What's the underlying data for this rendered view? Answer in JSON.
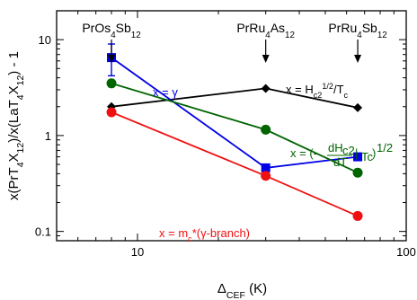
{
  "chart_data": {
    "type": "scatter",
    "xscale": "log",
    "yscale": "log",
    "xlim": [
      5,
      100
    ],
    "ylim": [
      0.08,
      20
    ],
    "grid": false,
    "legend": "none",
    "xlabel": {
      "main": "Δ",
      "sub": "CEF",
      "tail": " (K)"
    },
    "ylabel": {
      "parts": [
        {
          "t": "x(PrT"
        },
        {
          "t": "4",
          "sub": true
        },
        {
          "t": "X"
        },
        {
          "t": "12",
          "sub": true
        },
        {
          "t": ")/x(LaT"
        },
        {
          "t": "4",
          "sub": true
        },
        {
          "t": "X"
        },
        {
          "t": "12",
          "sub": true
        },
        {
          "t": ") - 1"
        }
      ]
    },
    "xticks": [
      {
        "v": 10,
        "label": "10"
      },
      {
        "v": 100,
        "label": "100"
      }
    ],
    "yticks": [
      {
        "v": 0.1,
        "label": "0.1"
      },
      {
        "v": 1,
        "label": "1"
      },
      {
        "v": 10,
        "label": "10"
      }
    ],
    "compounds": [
      {
        "x": 8,
        "parts": [
          {
            "t": "PrOs"
          },
          {
            "t": "4",
            "sub": true
          },
          {
            "t": "Sb"
          },
          {
            "t": "12",
            "sub": true
          }
        ]
      },
      {
        "x": 30,
        "parts": [
          {
            "t": "PrRu"
          },
          {
            "t": "4",
            "sub": true
          },
          {
            "t": "As"
          },
          {
            "t": "12",
            "sub": true
          }
        ]
      },
      {
        "x": 66,
        "parts": [
          {
            "t": "PrRu"
          },
          {
            "t": "4",
            "sub": true
          },
          {
            "t": "Sb"
          },
          {
            "t": "12",
            "sub": true
          }
        ]
      }
    ],
    "series": [
      {
        "color": "#000000",
        "marker": "diamond",
        "points": [
          {
            "x": 8,
            "y": 2.0
          },
          {
            "x": 30,
            "y": 3.1
          },
          {
            "x": 66,
            "y": 1.95
          }
        ]
      },
      {
        "color": "#0000e6",
        "marker": "square",
        "points": [
          {
            "x": 8,
            "y": 6.5,
            "err_lo": 4.2,
            "err_hi": 9.0
          },
          {
            "x": 30,
            "y": 0.46
          },
          {
            "x": 66,
            "y": 0.6
          }
        ]
      },
      {
        "color": "#006400",
        "marker": "circle",
        "points": [
          {
            "x": 8,
            "y": 3.5
          },
          {
            "x": 30,
            "y": 1.15
          },
          {
            "x": 66,
            "y": 0.41
          }
        ]
      },
      {
        "color": "#ee1111",
        "marker": "circle",
        "points": [
          {
            "x": 8,
            "y": 1.75
          },
          {
            "x": 30,
            "y": 0.38
          },
          {
            "x": 66,
            "y": 0.145
          }
        ]
      }
    ],
    "annotations": [
      {
        "name": "annotation-gamma",
        "color": "#0000e6",
        "parts": [
          {
            "t": "x = γ"
          }
        ]
      },
      {
        "name": "annotation-hc2",
        "color": "#000000",
        "parts": [
          {
            "t": "x = H"
          },
          {
            "t": "c2",
            "sub": true
          },
          {
            "t": "1/2",
            "sup": true
          },
          {
            "t": "/T"
          },
          {
            "t": "c",
            "sub": true
          }
        ]
      },
      {
        "name": "annotation-slope",
        "color": "#006400",
        "parts": [
          {
            "t": "x = (-"
          },
          {
            "t": "dH",
            "frac": "num"
          },
          {
            "t": "c2",
            "frac": "numsub"
          },
          {
            "t": "dT",
            "frac": "den"
          },
          {
            "t": " |"
          },
          {
            "t": "Tc",
            "sub": true
          },
          {
            "t": ")"
          },
          {
            "t": "1/2",
            "sup": true
          }
        ]
      },
      {
        "name": "annotation-mc",
        "color": "#ee1111",
        "parts": [
          {
            "t": "x = m"
          },
          {
            "t": "c",
            "sub": true
          },
          {
            "t": "*(γ-branch)"
          }
        ]
      }
    ]
  }
}
